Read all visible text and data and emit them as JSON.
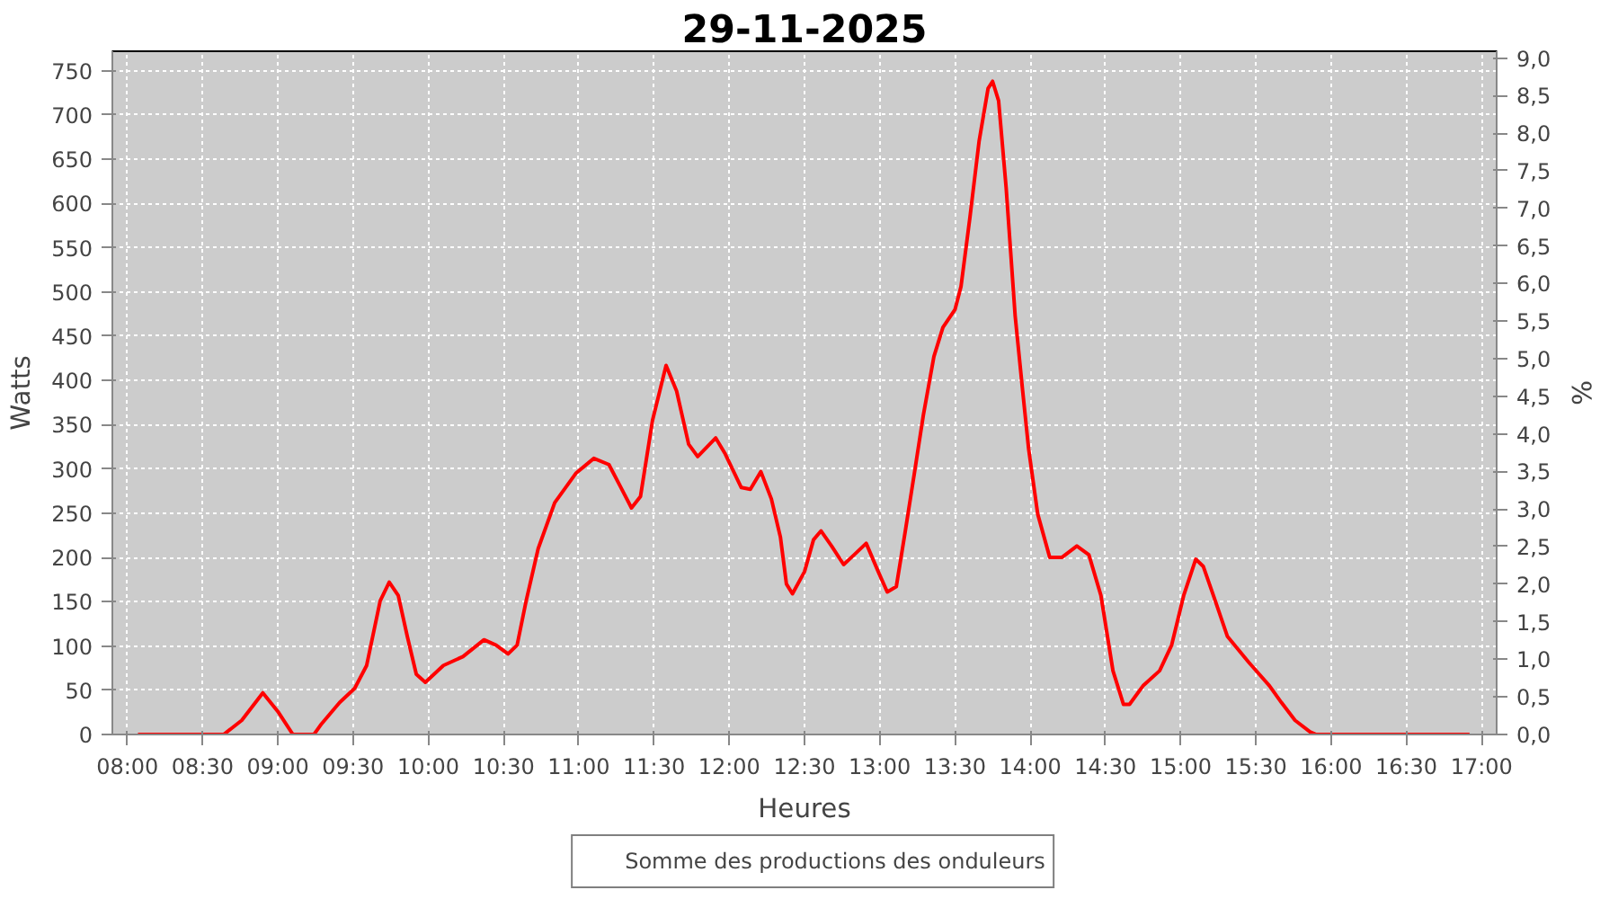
{
  "chart_data": {
    "type": "line",
    "title": "29-11-2025",
    "xlabel": "Heures",
    "ylabel": "Watts",
    "y2label": "%",
    "xlim": [
      7.9,
      17.1
    ],
    "xticks": [
      {
        "value": 8,
        "label": "08:00"
      },
      {
        "value": 8.5,
        "label": "08:30"
      },
      {
        "value": 9,
        "label": "09:00"
      },
      {
        "value": 9.5,
        "label": "09:30"
      },
      {
        "value": 10,
        "label": "10:00"
      },
      {
        "value": 10.5,
        "label": "10:30"
      },
      {
        "value": 11,
        "label": "11:00"
      },
      {
        "value": 11.5,
        "label": "11:30"
      },
      {
        "value": 12,
        "label": "12:00"
      },
      {
        "value": 12.5,
        "label": "12:30"
      },
      {
        "value": 13,
        "label": "13:00"
      },
      {
        "value": 13.5,
        "label": "13:30"
      },
      {
        "value": 14,
        "label": "14:00"
      },
      {
        "value": 14.5,
        "label": "14:30"
      },
      {
        "value": 15,
        "label": "15:00"
      },
      {
        "value": 15.5,
        "label": "15:30"
      },
      {
        "value": 16,
        "label": "16:00"
      },
      {
        "value": 16.5,
        "label": "16:30"
      },
      {
        "value": 17,
        "label": "17:00"
      }
    ],
    "ylim": [
      0,
      772
    ],
    "yticks": [
      0,
      50,
      100,
      150,
      200,
      250,
      300,
      350,
      400,
      450,
      500,
      550,
      600,
      650,
      700,
      750
    ],
    "y2lim": [
      0,
      9.09
    ],
    "y2ticks": [
      {
        "value": 0,
        "label": "0,0"
      },
      {
        "value": 0.5,
        "label": "0,5"
      },
      {
        "value": 1,
        "label": "1,0"
      },
      {
        "value": 1.5,
        "label": "1,5"
      },
      {
        "value": 2,
        "label": "2,0"
      },
      {
        "value": 2.5,
        "label": "2,5"
      },
      {
        "value": 3,
        "label": "3,0"
      },
      {
        "value": 3.5,
        "label": "3,5"
      },
      {
        "value": 4,
        "label": "4,0"
      },
      {
        "value": 4.5,
        "label": "4,5"
      },
      {
        "value": 5,
        "label": "5,0"
      },
      {
        "value": 5.5,
        "label": "5,5"
      },
      {
        "value": 6,
        "label": "6,0"
      },
      {
        "value": 6.5,
        "label": "6,5"
      },
      {
        "value": 7,
        "label": "7,0"
      },
      {
        "value": 7.5,
        "label": "7,5"
      },
      {
        "value": 8,
        "label": "8,0"
      },
      {
        "value": 8.5,
        "label": "8,5"
      },
      {
        "value": 9,
        "label": "9,0"
      }
    ],
    "grid": true,
    "legend": "bottom",
    "marker": "none",
    "line_style": "solid",
    "series": [
      {
        "name": "Somme des productions des onduleurs",
        "color": "#ff0000",
        "x": [
          8.07,
          8.64,
          8.76,
          8.9,
          9.0,
          9.1,
          9.24,
          9.29,
          9.41,
          9.51,
          9.59,
          9.68,
          9.74,
          9.8,
          9.86,
          9.92,
          9.98,
          10.1,
          10.23,
          10.37,
          10.45,
          10.53,
          10.59,
          10.65,
          10.73,
          10.84,
          10.98,
          11.1,
          11.2,
          11.28,
          11.35,
          11.41,
          11.49,
          11.58,
          11.65,
          11.73,
          11.79,
          11.91,
          11.97,
          12.08,
          12.14,
          12.21,
          12.28,
          12.34,
          12.38,
          12.42,
          12.5,
          12.56,
          12.61,
          12.68,
          12.76,
          12.83,
          12.91,
          12.99,
          13.05,
          13.11,
          13.17,
          13.23,
          13.29,
          13.36,
          13.42,
          13.5,
          13.54,
          13.6,
          13.66,
          13.72,
          13.75,
          13.79,
          13.84,
          13.9,
          13.95,
          13.99,
          14.05,
          14.13,
          14.21,
          14.31,
          14.39,
          14.47,
          14.55,
          14.62,
          14.66,
          14.75,
          14.86,
          14.94,
          15.02,
          15.1,
          15.15,
          15.23,
          15.31,
          15.45,
          15.59,
          15.67,
          15.76,
          15.86,
          15.9,
          16.92
        ],
        "values": [
          0,
          0,
          16,
          47,
          26,
          0,
          0,
          12,
          36,
          52,
          78,
          151,
          172,
          157,
          111,
          68,
          59,
          78,
          88,
          107,
          101,
          91,
          101,
          151,
          210,
          262,
          295,
          312,
          305,
          279,
          256,
          269,
          355,
          417,
          388,
          328,
          314,
          335,
          318,
          279,
          277,
          297,
          266,
          223,
          170,
          159,
          184,
          220,
          230,
          213,
          192,
          203,
          216,
          184,
          161,
          167,
          230,
          295,
          361,
          427,
          460,
          480,
          506,
          585,
          670,
          730,
          738,
          716,
          618,
          473,
          388,
          322,
          249,
          200,
          200,
          213,
          203,
          157,
          72,
          34,
          34,
          55,
          72,
          101,
          157,
          198,
          190,
          151,
          111,
          82,
          55,
          36,
          16,
          3,
          0,
          0
        ]
      }
    ]
  }
}
